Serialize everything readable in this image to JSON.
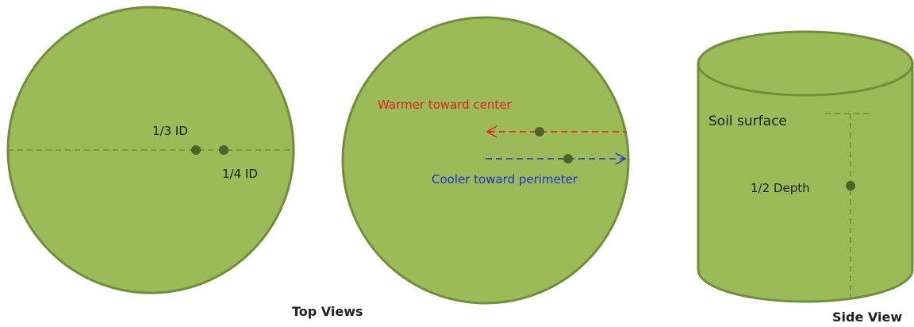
{
  "diagrams": [
    {
      "labels": [
        "1/3 ID",
        "1/4  ID"
      ]
    },
    {
      "labels": [
        "Warmer toward center",
        "Cooler toward perimeter"
      ]
    },
    {
      "labels": [
        "Soil surface",
        "1/2 Depth"
      ]
    }
  ],
  "captions": [
    "Top Views",
    "Side View"
  ]
}
